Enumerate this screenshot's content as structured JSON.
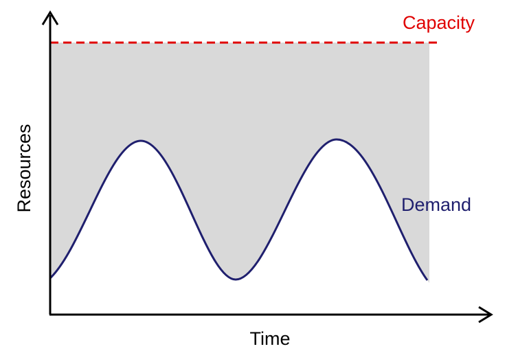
{
  "labels": {
    "capacity": "Capacity",
    "demand": "Demand",
    "y_axis": "Resources",
    "x_axis": "Time"
  }
}
